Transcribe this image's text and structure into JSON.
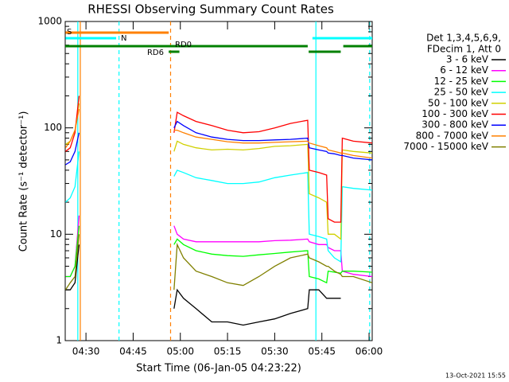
{
  "chart_data": {
    "type": "line",
    "title": "RHESSI Observing Summary Count Rates",
    "x_label": "Start Time (06-Jan-05 04:23:22)",
    "y_label": "Count Rate (s⁻¹ detector⁻¹)",
    "legend_header": [
      "Det 1,3,4,5,6,9,",
      "FDecim 1, Att 0"
    ],
    "footer": "13-Oct-2021 15:55",
    "log_y": true,
    "xlim": [
      23.4,
      121
    ],
    "ylim": [
      1,
      1000
    ],
    "xticks": [
      {
        "value": 30,
        "label": "04:30"
      },
      {
        "value": 45,
        "label": "04:45"
      },
      {
        "value": 60,
        "label": "05:00"
      },
      {
        "value": 75,
        "label": "05:15"
      },
      {
        "value": 90,
        "label": "05:30"
      },
      {
        "value": 105,
        "label": "05:45"
      },
      {
        "value": 120,
        "label": "06:00"
      }
    ],
    "yticks": [
      1,
      10,
      100,
      1000
    ],
    "x": [
      23.5,
      25,
      26.5,
      27.8,
      40,
      58,
      59,
      61,
      65,
      70,
      75,
      80,
      85,
      90,
      95,
      100.5,
      101,
      104,
      106.5,
      107,
      109,
      111,
      111.5,
      115,
      121
    ],
    "series": [
      {
        "name": "3 - 6 keV",
        "color": "#000000",
        "values": [
          3,
          3,
          3.5,
          8,
          null,
          2,
          3,
          2.5,
          2,
          1.5,
          1.5,
          1.4,
          1.5,
          1.6,
          1.8,
          2,
          3,
          3,
          2.5,
          2.5,
          2.5,
          2.5,
          null,
          null,
          null
        ]
      },
      {
        "name": "6 - 12 keV",
        "color": "#ff00ff",
        "values": [
          4,
          4,
          5,
          15,
          null,
          12,
          10,
          9,
          8.5,
          8.5,
          8.5,
          8.5,
          8.5,
          8.7,
          8.8,
          9,
          8.5,
          8,
          8,
          7.5,
          7,
          7,
          4.5,
          4.2,
          4
        ]
      },
      {
        "name": "12 - 25 keV",
        "color": "#00ff00",
        "values": [
          4,
          4,
          5,
          12,
          null,
          8,
          9,
          8,
          7,
          6.5,
          6.3,
          6.2,
          6.4,
          6.6,
          6.8,
          7,
          4,
          3.8,
          3.5,
          4.5,
          4.4,
          4.3,
          4.5,
          4.5,
          4.4
        ]
      },
      {
        "name": "25 - 50 keV",
        "color": "#00ffff",
        "values": [
          20,
          22,
          28,
          60,
          null,
          35,
          40,
          38,
          34,
          32,
          30,
          30,
          31,
          34,
          36,
          38,
          10,
          9.5,
          9,
          7,
          6,
          5.5,
          28,
          27,
          26
        ]
      },
      {
        "name": "50 - 100 keV",
        "color": "#d0d000",
        "values": [
          70,
          75,
          95,
          170,
          null,
          60,
          75,
          70,
          65,
          62,
          63,
          62,
          64,
          67,
          68,
          70,
          24,
          22,
          20,
          10,
          10,
          9,
          62,
          60,
          58
        ]
      },
      {
        "name": "100 - 300 keV",
        "color": "#ff0000",
        "values": [
          60,
          65,
          90,
          200,
          null,
          90,
          140,
          130,
          115,
          105,
          95,
          90,
          92,
          100,
          110,
          118,
          40,
          38,
          36,
          14,
          13,
          13,
          80,
          75,
          72
        ]
      },
      {
        "name": "300 - 800 keV",
        "color": "#0000ff",
        "values": [
          45,
          48,
          60,
          90,
          null,
          100,
          115,
          105,
          90,
          82,
          78,
          76,
          76,
          77,
          78,
          80,
          65,
          62,
          60,
          58,
          57,
          55,
          55,
          52,
          50
        ]
      },
      {
        "name": "800 - 7000 keV",
        "color": "#ff8000",
        "values": [
          65,
          75,
          95,
          150,
          null,
          95,
          95,
          90,
          82,
          78,
          74,
          72,
          72,
          73,
          74,
          75,
          72,
          68,
          65,
          62,
          60,
          58,
          58,
          55,
          52
        ]
      },
      {
        "name": "7000 - 15000 keV",
        "color": "#808000",
        "values": [
          3,
          3.5,
          4,
          10,
          null,
          3,
          8,
          6,
          4.5,
          4,
          3.5,
          3.3,
          4,
          5,
          6,
          6.5,
          6,
          5.5,
          5,
          5,
          4.5,
          4.2,
          4,
          4,
          3.5
        ]
      }
    ],
    "flags": [
      {
        "label": "S",
        "color": "#ff8000",
        "spans": [
          [
            23.5,
            56.3
          ]
        ]
      },
      {
        "label": "N",
        "color": "#00ffff",
        "spans": [
          [
            23.5,
            39.6
          ],
          [
            102,
            121
          ]
        ]
      },
      {
        "label": "RD0",
        "color": "#008000",
        "spans": [
          [
            23.4,
            100.5
          ],
          [
            111.8,
            121
          ]
        ]
      },
      {
        "label": "RD6",
        "color": "#008000",
        "spans": [
          [
            56.3,
            59.7
          ],
          [
            100.8,
            111
          ]
        ]
      }
    ],
    "vlines": [
      {
        "x": 27.4,
        "color": "#00ffff",
        "dashed": false
      },
      {
        "x": 103.1,
        "color": "#00ffff",
        "dashed": false
      },
      {
        "x": 40.5,
        "color": "#00ffff",
        "dashed": true
      },
      {
        "x": 120.2,
        "color": "#00ffff",
        "dashed": true
      },
      {
        "x": 28.2,
        "color": "#ff8000",
        "dashed": false
      },
      {
        "x": 56.9,
        "color": "#ff8000",
        "dashed": true
      }
    ]
  }
}
